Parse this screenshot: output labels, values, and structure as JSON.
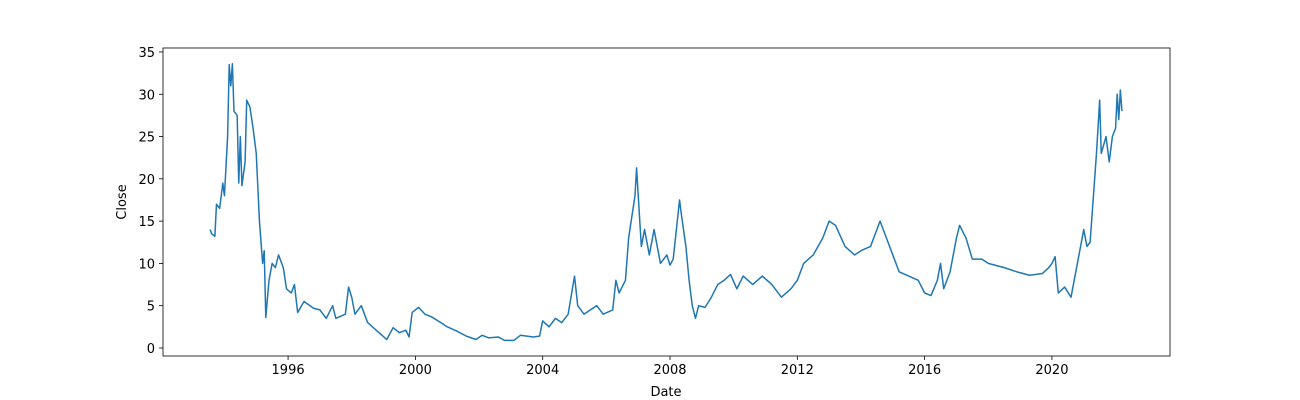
{
  "chart_data": {
    "type": "line",
    "xlabel": "Date",
    "ylabel": "Close",
    "xlim": [
      1992.07,
      2023.71
    ],
    "ylim": [
      -0.95,
      35.47
    ],
    "xticks": [
      1996,
      2000,
      2004,
      2008,
      2012,
      2016,
      2020
    ],
    "yticks": [
      0,
      5,
      10,
      15,
      20,
      25,
      30,
      35
    ],
    "series": [
      {
        "name": "Close",
        "color": "#1f77b4",
        "x": [
          1993.55,
          1993.6,
          1993.7,
          1993.75,
          1993.85,
          1993.95,
          1994.0,
          1994.1,
          1994.15,
          1994.2,
          1994.25,
          1994.3,
          1994.4,
          1994.45,
          1994.5,
          1994.55,
          1994.65,
          1994.7,
          1994.8,
          1994.9,
          1995.0,
          1995.1,
          1995.2,
          1995.25,
          1995.3,
          1995.4,
          1995.5,
          1995.6,
          1995.7,
          1995.85,
          1995.95,
          1996.1,
          1996.2,
          1996.3,
          1996.5,
          1996.8,
          1997.0,
          1997.2,
          1997.4,
          1997.5,
          1997.8,
          1997.9,
          1998.0,
          1998.1,
          1998.3,
          1998.5,
          1998.8,
          1999.1,
          1999.3,
          1999.5,
          1999.7,
          1999.8,
          1999.9,
          2000.1,
          2000.3,
          2000.5,
          2000.8,
          2001.0,
          2001.3,
          2001.6,
          2001.9,
          2002.1,
          2002.3,
          2002.6,
          2002.8,
          2003.1,
          2003.3,
          2003.7,
          2003.9,
          2004.0,
          2004.2,
          2004.4,
          2004.6,
          2004.8,
          2005.0,
          2005.1,
          2005.3,
          2005.5,
          2005.7,
          2005.9,
          2006.2,
          2006.3,
          2006.4,
          2006.6,
          2006.7,
          2006.9,
          2006.95,
          2007.05,
          2007.1,
          2007.2,
          2007.35,
          2007.5,
          2007.6,
          2007.7,
          2007.9,
          2008.0,
          2008.1,
          2008.2,
          2008.3,
          2008.35,
          2008.5,
          2008.6,
          2008.7,
          2008.8,
          2008.9,
          2009.1,
          2009.3,
          2009.5,
          2009.7,
          2009.9,
          2010.1,
          2010.3,
          2010.6,
          2010.9,
          2011.2,
          2011.5,
          2011.8,
          2012.0,
          2012.2,
          2012.5,
          2012.8,
          2013.0,
          2013.2,
          2013.5,
          2013.8,
          2014.0,
          2014.3,
          2014.6,
          2014.8,
          2015.0,
          2015.2,
          2015.5,
          2015.8,
          2016.0,
          2016.2,
          2016.4,
          2016.5,
          2016.6,
          2016.8,
          2017.0,
          2017.1,
          2017.3,
          2017.5,
          2017.8,
          2018.0,
          2018.5,
          2018.9,
          2019.3,
          2019.7,
          2019.9,
          2020.0,
          2020.1,
          2020.2,
          2020.4,
          2020.6,
          2020.8,
          2021.0,
          2021.1,
          2021.2,
          2021.4,
          2021.5,
          2021.55,
          2021.7,
          2021.8,
          2021.9,
          2022.0,
          2022.05,
          2022.1,
          2022.15,
          2022.2
        ],
        "values": [
          14,
          13.5,
          13.2,
          17,
          16.5,
          19.5,
          18,
          25,
          33.5,
          31,
          33.6,
          28,
          27.5,
          19.5,
          25,
          19.2,
          22,
          29.3,
          28.5,
          26,
          23,
          15,
          10,
          11.5,
          3.6,
          8,
          10,
          9.5,
          11,
          9.5,
          7,
          6.5,
          7.5,
          4.2,
          5.5,
          4.7,
          4.5,
          3.5,
          5,
          3.5,
          4,
          7.2,
          6,
          4,
          5,
          3,
          2,
          1,
          2.4,
          1.8,
          2.1,
          1.3,
          4.2,
          4.8,
          4,
          3.7,
          3,
          2.5,
          2,
          1.4,
          1,
          1.5,
          1.2,
          1.3,
          0.9,
          0.9,
          1.5,
          1.3,
          1.4,
          3.2,
          2.5,
          3.5,
          3,
          4,
          8.5,
          5,
          4,
          4.5,
          5,
          4,
          4.5,
          8,
          6.5,
          8,
          13,
          18,
          21.3,
          15,
          12,
          14,
          11,
          14,
          12,
          10,
          11,
          9.8,
          10.5,
          14,
          17.5,
          16,
          12,
          8,
          5,
          3.5,
          5,
          4.8,
          6,
          7.5,
          8,
          8.7,
          7,
          8.5,
          7.5,
          8.5,
          7.5,
          6,
          7,
          8,
          10,
          11,
          13,
          15,
          14.5,
          12,
          11,
          11.5,
          12,
          15,
          13,
          11,
          9,
          8.5,
          8,
          6.5,
          6.2,
          8,
          10,
          7,
          9,
          13,
          14.5,
          13,
          10.5,
          10.5,
          10,
          9.5,
          9,
          8.6,
          8.8,
          9.5,
          10,
          10.8,
          6.5,
          7.2,
          6,
          10,
          14,
          12,
          12.5,
          23,
          29.3,
          23,
          25,
          22,
          25,
          26,
          30,
          27,
          30.5,
          28
        ]
      }
    ]
  }
}
